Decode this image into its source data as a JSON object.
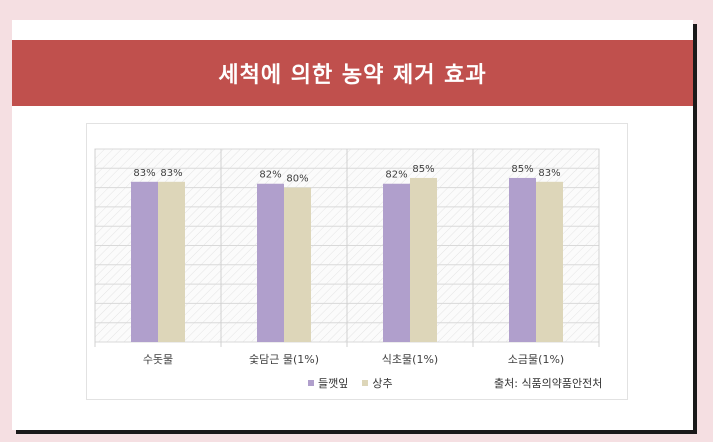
{
  "banner": {
    "title": "세척에 의한 농약 제거 효과"
  },
  "source": "출처: 식품의약품안전처",
  "colors": {
    "banner": "#c0504d",
    "series1": "#b09fcc",
    "series2": "#ddd6b9",
    "background": "#f5dfe2"
  },
  "chart_data": {
    "type": "bar",
    "title": "",
    "categories": [
      "수돗물",
      "숯담근 물(1%)",
      "식초물(1%)",
      "소금물(1%)"
    ],
    "series": [
      {
        "name": "들깻잎",
        "values": [
          83,
          82,
          82,
          85
        ],
        "labels": [
          "83%",
          "82%",
          "82%",
          "85%"
        ]
      },
      {
        "name": "상추",
        "values": [
          83,
          80,
          85,
          83
        ],
        "labels": [
          "83%",
          "80%",
          "85%",
          "83%"
        ]
      }
    ],
    "ylim": [
      0,
      100
    ],
    "grid": true,
    "legend_position": "bottom"
  }
}
